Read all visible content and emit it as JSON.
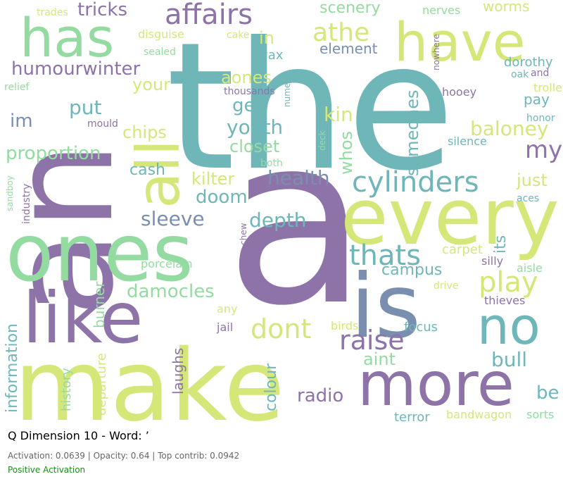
{
  "caption": {
    "title": "Q Dimension 10 - Word: ’",
    "stats": "Activation: 0.0639 | Opacity: 0.64 | Top contrib: 0.0942",
    "sign": "Positive Activation",
    "sign_color": "#1a8c1a"
  },
  "palette": {
    "purple": "#8d73a8",
    "teal": "#6fb6b9",
    "green": "#94dba2",
    "lime": "#d6e77a",
    "steel": "#7a8fb0"
  },
  "words": [
    {
      "text": "the",
      "color": "teal"
    },
    {
      "text": "a",
      "color": "purple"
    },
    {
      "text": "an",
      "color": "purple"
    },
    {
      "text": "make",
      "color": "lime"
    },
    {
      "text": "ones",
      "color": "green"
    },
    {
      "text": "every",
      "color": "lime"
    },
    {
      "text": "is",
      "color": "steel"
    },
    {
      "text": "like",
      "color": "purple"
    },
    {
      "text": "has",
      "color": "green"
    },
    {
      "text": "have",
      "color": "lime"
    },
    {
      "text": "all",
      "color": "lime"
    },
    {
      "text": "more",
      "color": "purple"
    },
    {
      "text": "no",
      "color": "teal"
    },
    {
      "text": "affairs",
      "color": "purple"
    },
    {
      "text": "athe",
      "color": "lime"
    },
    {
      "text": "cylinders",
      "color": "teal"
    },
    {
      "text": "thats",
      "color": "teal"
    },
    {
      "text": "dont",
      "color": "lime"
    },
    {
      "text": "raise",
      "color": "purple"
    },
    {
      "text": "play",
      "color": "lime"
    },
    {
      "text": "tricks",
      "color": "purple"
    },
    {
      "text": "humourwinter",
      "color": "purple"
    },
    {
      "text": "proportion",
      "color": "green"
    },
    {
      "text": "my",
      "color": "purple"
    },
    {
      "text": "baloney",
      "color": "lime"
    },
    {
      "text": "youth",
      "color": "teal"
    },
    {
      "text": "health",
      "color": "steel"
    },
    {
      "text": "someones",
      "color": "teal"
    },
    {
      "text": "whos",
      "color": "green"
    },
    {
      "text": "kin",
      "color": "lime"
    },
    {
      "text": "damocles",
      "color": "green"
    },
    {
      "text": "depth",
      "color": "teal"
    },
    {
      "text": "sleeve",
      "color": "steel"
    },
    {
      "text": "doom",
      "color": "teal"
    },
    {
      "text": "kilter",
      "color": "lime"
    },
    {
      "text": "put",
      "color": "teal"
    },
    {
      "text": "chips",
      "color": "lime"
    },
    {
      "text": "closet",
      "color": "green"
    },
    {
      "text": "get",
      "color": "teal"
    },
    {
      "text": "aones",
      "color": "lime"
    },
    {
      "text": "your",
      "color": "lime"
    },
    {
      "text": "im",
      "color": "steel"
    },
    {
      "text": "in",
      "color": "lime"
    },
    {
      "text": "cash",
      "color": "teal"
    },
    {
      "text": "scenery",
      "color": "green"
    },
    {
      "text": "element",
      "color": "steel"
    },
    {
      "text": "worms",
      "color": "lime"
    },
    {
      "text": "nerves",
      "color": "green"
    },
    {
      "text": "trades",
      "color": "lime"
    },
    {
      "text": "disguise",
      "color": "lime"
    },
    {
      "text": "sealed",
      "color": "green"
    },
    {
      "text": "cake",
      "color": "lime"
    },
    {
      "text": "wax",
      "color": "teal"
    },
    {
      "text": "nowhere",
      "color": "purple"
    },
    {
      "text": "dorothy",
      "color": "teal"
    },
    {
      "text": "oak",
      "color": "teal"
    },
    {
      "text": "and",
      "color": "purple"
    },
    {
      "text": "trolley",
      "color": "lime"
    },
    {
      "text": "relief",
      "color": "green"
    },
    {
      "text": "thousands",
      "color": "purple"
    },
    {
      "text": "numero",
      "color": "teal"
    },
    {
      "text": "hooey",
      "color": "purple"
    },
    {
      "text": "pay",
      "color": "teal"
    },
    {
      "text": "mould",
      "color": "purple"
    },
    {
      "text": "honor",
      "color": "teal"
    },
    {
      "text": "silence",
      "color": "teal"
    },
    {
      "text": "deck",
      "color": "green"
    },
    {
      "text": "both",
      "color": "green"
    },
    {
      "text": "just",
      "color": "lime"
    },
    {
      "text": "aces",
      "color": "teal"
    },
    {
      "text": "sandboy",
      "color": "green"
    },
    {
      "text": "industry",
      "color": "purple"
    },
    {
      "text": "chew",
      "color": "purple"
    },
    {
      "text": "its",
      "color": "teal"
    },
    {
      "text": "campus",
      "color": "teal"
    },
    {
      "text": "carpet",
      "color": "lime"
    },
    {
      "text": "silly",
      "color": "purple"
    },
    {
      "text": "aisle",
      "color": "green"
    },
    {
      "text": "porcelain",
      "color": "green"
    },
    {
      "text": "burner",
      "color": "green"
    },
    {
      "text": "drive",
      "color": "lime"
    },
    {
      "text": "thieves",
      "color": "purple"
    },
    {
      "text": "any",
      "color": "lime"
    },
    {
      "text": "information",
      "color": "teal"
    },
    {
      "text": "jail",
      "color": "purple"
    },
    {
      "text": "birds",
      "color": "lime"
    },
    {
      "text": "focus",
      "color": "teal"
    },
    {
      "text": "laughs",
      "color": "purple"
    },
    {
      "text": "aint",
      "color": "green"
    },
    {
      "text": "bull",
      "color": "teal"
    },
    {
      "text": "history",
      "color": "green"
    },
    {
      "text": "departure",
      "color": "lime"
    },
    {
      "text": "colour",
      "color": "teal"
    },
    {
      "text": "radio",
      "color": "purple"
    },
    {
      "text": "be",
      "color": "teal"
    },
    {
      "text": "terror",
      "color": "teal"
    },
    {
      "text": "bandwagon",
      "color": "lime"
    },
    {
      "text": "sorts",
      "color": "green"
    }
  ]
}
